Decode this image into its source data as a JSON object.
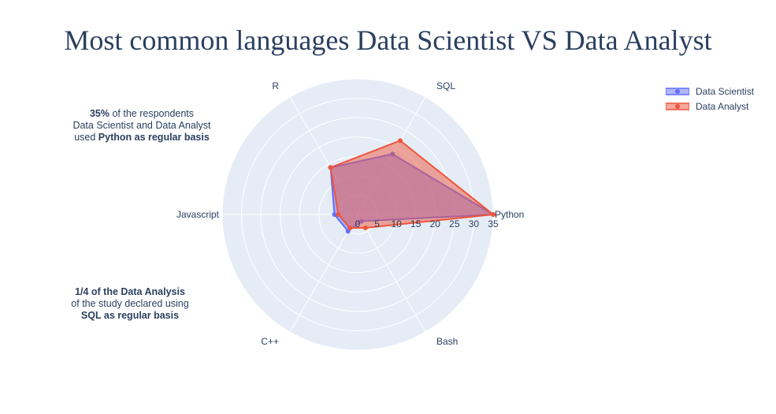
{
  "title": "Most common languages Data Scientist VS Data Analyst",
  "annotations": {
    "note1": {
      "line1_bold": "35%",
      "line1_rest": " of the respondents",
      "line2": "Data Scientist and Data Analyst",
      "line3_pre": "used ",
      "line3_bold": "Python as regular basis"
    },
    "note2": {
      "line1_bold": "1/4 of the Data Analysis",
      "line2": "of the study declared using",
      "line3_bold": "SQL as regular basis"
    }
  },
  "chart_data": {
    "type": "radar",
    "categories": [
      "Python",
      "SQL",
      "R",
      "Javascript",
      "C++",
      "Bash"
    ],
    "radial_range": [
      0,
      35
    ],
    "radial_ticks": [
      "0",
      "5",
      "10",
      "15",
      "20",
      "25",
      "30",
      "35"
    ],
    "series": [
      {
        "name": "Data Scientist",
        "values": [
          35,
          18,
          14,
          6,
          5,
          2
        ],
        "color": "#636efa"
      },
      {
        "name": "Data Analyst",
        "values": [
          35,
          22,
          14,
          5,
          4,
          4
        ],
        "color": "#ef553b"
      }
    ],
    "background_color": "#e5ecf6",
    "grid_color": "#ffffff"
  }
}
